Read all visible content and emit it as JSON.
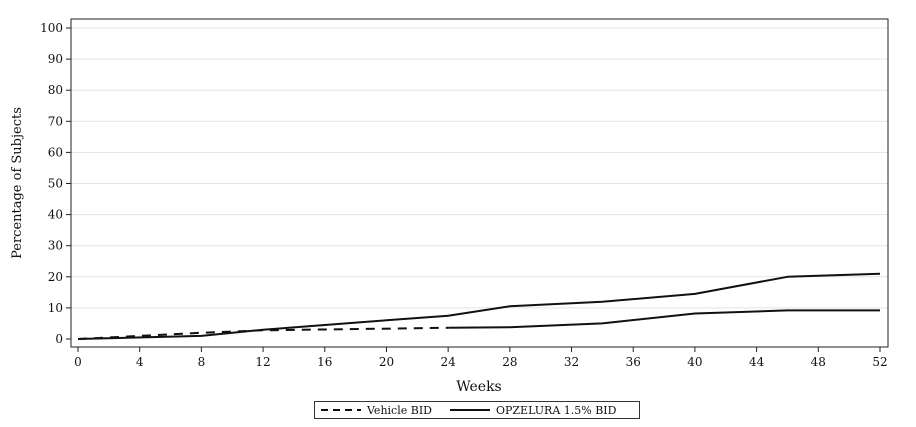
{
  "chart_data": {
    "type": "line",
    "title": "",
    "xlabel": "Weeks",
    "ylabel": "Percentage of Subjects",
    "xlim": [
      0,
      52
    ],
    "ylim": [
      0,
      100
    ],
    "xticks": [
      0,
      4,
      8,
      12,
      16,
      20,
      24,
      28,
      32,
      36,
      40,
      44,
      48,
      52
    ],
    "yticks": [
      0,
      10,
      20,
      30,
      40,
      50,
      60,
      70,
      80,
      90,
      100
    ],
    "grid": "horizontal",
    "legend": "bottom",
    "series": [
      {
        "name": "Vehicle BID",
        "style": "dashed",
        "color": "#111111",
        "x": [
          0,
          4,
          8,
          12,
          24
        ],
        "y": [
          0,
          1,
          2,
          2.8,
          3.6
        ]
      },
      {
        "name": "OPZELURA 1.5% BID",
        "style": "solid",
        "color": "#111111",
        "x": [
          0,
          8,
          12,
          16,
          20,
          24,
          28,
          34,
          40,
          46,
          52
        ],
        "y": [
          0,
          1,
          3,
          4.5,
          6,
          7.5,
          10.5,
          12,
          14.5,
          20,
          21
        ]
      },
      {
        "name": "",
        "style": "solid",
        "color": "#111111",
        "x": [
          24,
          28,
          34,
          40,
          46,
          52
        ],
        "y": [
          3.6,
          3.8,
          5,
          8.2,
          9.2,
          9.2
        ]
      }
    ]
  }
}
